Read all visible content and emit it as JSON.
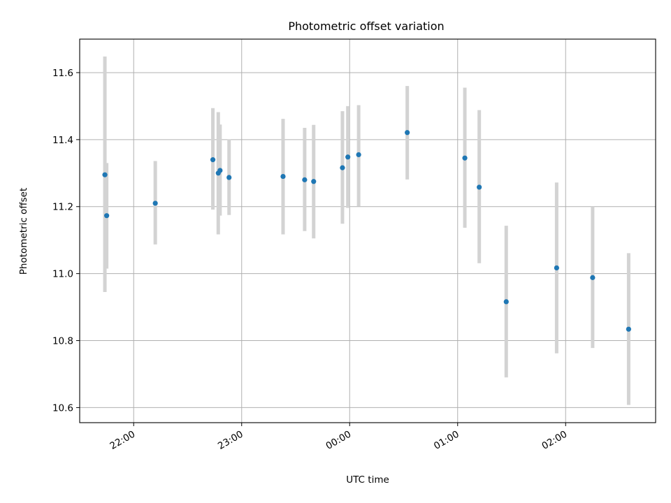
{
  "chart_data": {
    "type": "scatter",
    "title": "Photometric offset variation",
    "xlabel": "UTC time",
    "ylabel": "Photometric offset",
    "x_tick_labels": [
      "22:00",
      "23:00",
      "00:00",
      "01:00",
      "02:00"
    ],
    "x_tick_times": [
      "22:00",
      "23:00",
      "00:00",
      "01:00",
      "02:00"
    ],
    "y_tick_labels": [
      "10.6",
      "10.8",
      "11.0",
      "11.2",
      "11.4",
      "11.6"
    ],
    "y_ticks": [
      10.6,
      10.8,
      11.0,
      11.2,
      11.4,
      11.6
    ],
    "xlim": [
      "21:30",
      "02:50"
    ],
    "ylim": [
      10.555,
      11.7
    ],
    "grid": true,
    "colors": {
      "point": "#1f77b4",
      "errorbar": "#d3d3d3",
      "grid": "#b0b0b0"
    },
    "points": [
      {
        "time": "21:44",
        "y": 11.295,
        "err_low": 10.945,
        "err_high": 11.648
      },
      {
        "time": "21:45",
        "y": 11.173,
        "err_low": 11.015,
        "err_high": 11.33
      },
      {
        "time": "22:12",
        "y": 11.21,
        "err_low": 11.087,
        "err_high": 11.336
      },
      {
        "time": "22:44",
        "y": 11.34,
        "err_low": 11.191,
        "err_high": 11.494
      },
      {
        "time": "22:47",
        "y": 11.3,
        "err_low": 11.117,
        "err_high": 11.482
      },
      {
        "time": "22:48",
        "y": 11.308,
        "err_low": 11.173,
        "err_high": 11.445
      },
      {
        "time": "22:53",
        "y": 11.287,
        "err_low": 11.175,
        "err_high": 11.401
      },
      {
        "time": "23:23",
        "y": 11.29,
        "err_low": 11.117,
        "err_high": 11.462
      },
      {
        "time": "23:35",
        "y": 11.28,
        "err_low": 11.127,
        "err_high": 11.435
      },
      {
        "time": "23:40",
        "y": 11.275,
        "err_low": 11.105,
        "err_high": 11.444
      },
      {
        "time": "23:56",
        "y": 11.316,
        "err_low": 11.149,
        "err_high": 11.485
      },
      {
        "time": "23:59",
        "y": 11.348,
        "err_low": 11.196,
        "err_high": 11.5
      },
      {
        "time": "00:05",
        "y": 11.355,
        "err_low": 11.201,
        "err_high": 11.503
      },
      {
        "time": "00:32",
        "y": 11.421,
        "err_low": 11.281,
        "err_high": 11.56
      },
      {
        "time": "01:04",
        "y": 11.345,
        "err_low": 11.137,
        "err_high": 11.555
      },
      {
        "time": "01:12",
        "y": 11.258,
        "err_low": 11.031,
        "err_high": 11.488
      },
      {
        "time": "01:27",
        "y": 10.916,
        "err_low": 10.69,
        "err_high": 11.143
      },
      {
        "time": "01:55",
        "y": 11.017,
        "err_low": 10.762,
        "err_high": 11.272
      },
      {
        "time": "02:15",
        "y": 10.988,
        "err_low": 10.778,
        "err_high": 11.2
      },
      {
        "time": "02:35",
        "y": 10.834,
        "err_low": 10.608,
        "err_high": 11.061
      }
    ]
  }
}
